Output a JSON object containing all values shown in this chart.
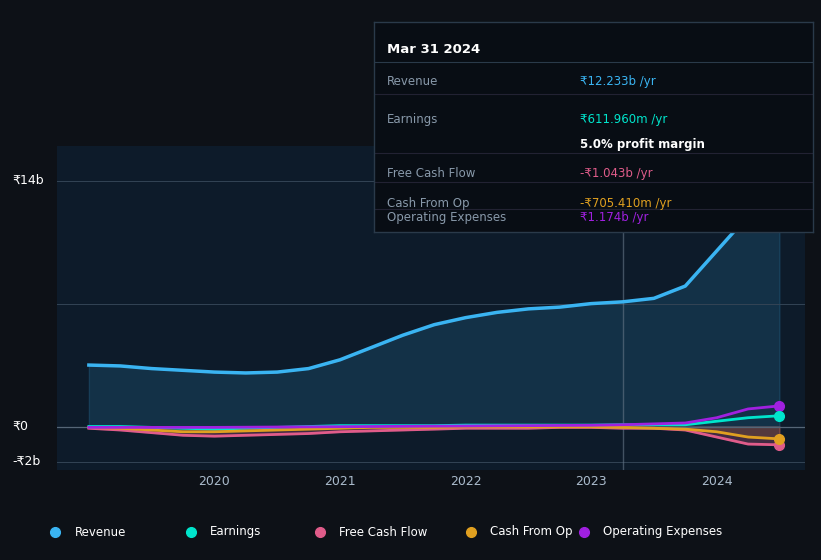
{
  "background_color": "#0d1117",
  "plot_bg_color": "#0d1b2a",
  "ylabel_top": "₹14b",
  "ylabel_zero": "₹0",
  "ylabel_neg": "-₹2b",
  "x_years": [
    2019.0,
    2019.25,
    2019.5,
    2019.75,
    2020.0,
    2020.25,
    2020.5,
    2020.75,
    2021.0,
    2021.25,
    2021.5,
    2021.75,
    2022.0,
    2022.25,
    2022.5,
    2022.75,
    2023.0,
    2023.25,
    2023.5,
    2023.75,
    2024.0,
    2024.25,
    2024.5
  ],
  "revenue": [
    3.5,
    3.45,
    3.3,
    3.2,
    3.1,
    3.05,
    3.1,
    3.3,
    3.8,
    4.5,
    5.2,
    5.8,
    6.2,
    6.5,
    6.7,
    6.8,
    7.0,
    7.1,
    7.3,
    8.0,
    10.0,
    12.0,
    12.233
  ],
  "earnings": [
    0.0,
    0.0,
    -0.05,
    -0.1,
    -0.15,
    -0.1,
    -0.05,
    0.0,
    0.05,
    0.05,
    0.05,
    0.05,
    0.08,
    0.08,
    0.08,
    0.08,
    0.08,
    0.1,
    0.1,
    0.1,
    0.3,
    0.5,
    0.612
  ],
  "free_cash_flow": [
    -0.1,
    -0.2,
    -0.35,
    -0.5,
    -0.55,
    -0.5,
    -0.45,
    -0.4,
    -0.3,
    -0.25,
    -0.2,
    -0.15,
    -0.1,
    -0.1,
    -0.1,
    -0.05,
    -0.05,
    -0.1,
    -0.1,
    -0.2,
    -0.6,
    -1.0,
    -1.043
  ],
  "cash_from_op": [
    -0.05,
    -0.1,
    -0.2,
    -0.3,
    -0.3,
    -0.25,
    -0.2,
    -0.15,
    -0.1,
    -0.05,
    -0.05,
    -0.05,
    -0.02,
    -0.02,
    -0.02,
    -0.02,
    -0.02,
    -0.05,
    -0.1,
    -0.15,
    -0.3,
    -0.6,
    -0.705
  ],
  "operating_expenses": [
    -0.05,
    -0.05,
    -0.05,
    -0.05,
    -0.05,
    -0.04,
    -0.03,
    -0.02,
    -0.01,
    0.0,
    0.01,
    0.02,
    0.03,
    0.04,
    0.05,
    0.06,
    0.07,
    0.1,
    0.15,
    0.2,
    0.5,
    1.0,
    1.174
  ],
  "revenue_color": "#3ab4f2",
  "earnings_color": "#00e5cc",
  "free_cash_flow_color": "#e05c8a",
  "cash_from_op_color": "#e0a020",
  "operating_expenses_color": "#a020e0",
  "highlight_x": 2023.25,
  "tooltip": {
    "title": "Mar 31 2024",
    "revenue_label": "Revenue",
    "revenue_value": "₹12.233b /yr",
    "earnings_label": "Earnings",
    "earnings_value": "₹611.960m /yr",
    "profit_margin": "5.0% profit margin",
    "fcf_label": "Free Cash Flow",
    "fcf_value": "-₹1.043b /yr",
    "cfop_label": "Cash From Op",
    "cfop_value": "-₹705.410m /yr",
    "opex_label": "Operating Expenses",
    "opex_value": "₹1.174b /yr"
  },
  "legend_items": [
    "Revenue",
    "Earnings",
    "Free Cash Flow",
    "Cash From Op",
    "Operating Expenses"
  ],
  "legend_colors": [
    "#3ab4f2",
    "#00e5cc",
    "#e05c8a",
    "#e0a020",
    "#a020e0"
  ],
  "ylim": [
    -2.5,
    16.0
  ],
  "xlim": [
    2018.75,
    2024.7
  ]
}
